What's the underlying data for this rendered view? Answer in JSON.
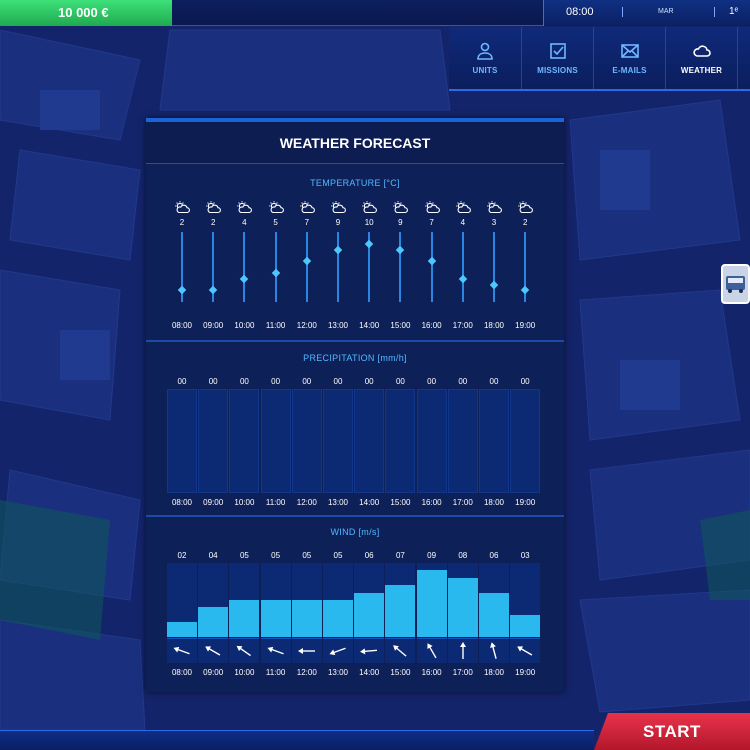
{
  "topbar": {
    "money": "10 000 €",
    "time": "08:00",
    "day": "MAR",
    "date": "1ᵉ"
  },
  "nav": {
    "items": [
      {
        "label": "UNITS",
        "icon": "person-icon",
        "active": false
      },
      {
        "label": "MISSIONS",
        "icon": "checkbox-icon",
        "active": false
      },
      {
        "label": "E-MAILS",
        "icon": "envelope-icon",
        "active": false
      },
      {
        "label": "WEATHER",
        "icon": "cloud-icon",
        "active": true
      }
    ]
  },
  "forecast": {
    "title": "WEATHER FORECAST",
    "hours": [
      "08:00",
      "09:00",
      "10:00",
      "11:00",
      "12:00",
      "13:00",
      "14:00",
      "15:00",
      "16:00",
      "17:00",
      "18:00",
      "19:00"
    ],
    "temperature": {
      "title": "TEMPERATURE [°C]",
      "icon": "partly-cloudy-sun-icon",
      "values": [
        2,
        2,
        4,
        5,
        7,
        9,
        10,
        9,
        7,
        4,
        3,
        2
      ],
      "labels": [
        "2",
        "2",
        "4",
        "5",
        "7",
        "9",
        "10",
        "9",
        "7",
        "4",
        "3",
        "2"
      ]
    },
    "precipitation": {
      "title": "PRECIPITATION [mm/h]",
      "values": [
        0,
        0,
        0,
        0,
        0,
        0,
        0,
        0,
        0,
        0,
        0,
        0
      ],
      "labels": [
        "00",
        "00",
        "00",
        "00",
        "00",
        "00",
        "00",
        "00",
        "00",
        "00",
        "00",
        "00"
      ]
    },
    "wind": {
      "title": "WIND [m/s]",
      "values": [
        2,
        4,
        5,
        5,
        5,
        5,
        6,
        7,
        9,
        8,
        6,
        3
      ],
      "labels": [
        "02",
        "04",
        "05",
        "05",
        "05",
        "05",
        "06",
        "07",
        "09",
        "08",
        "06",
        "03"
      ],
      "directions_deg": [
        290,
        300,
        305,
        290,
        270,
        250,
        265,
        310,
        330,
        0,
        345,
        300
      ]
    }
  },
  "start_button": {
    "label": "START"
  },
  "colors": {
    "accent": "#52b8ff",
    "panel": "#0e2058",
    "money": "#2fc765",
    "start": "#d7263d",
    "wind_fill": "#2ab9ee"
  }
}
